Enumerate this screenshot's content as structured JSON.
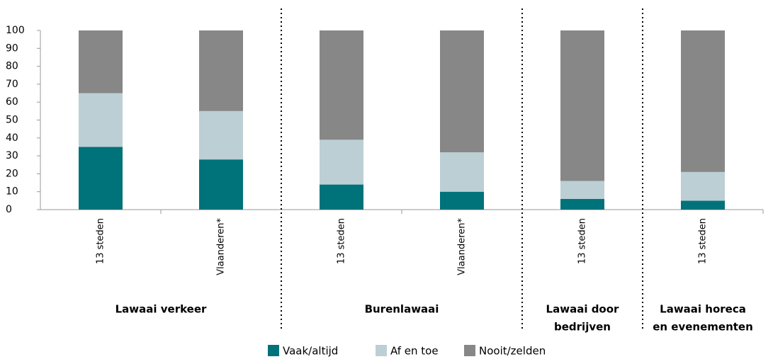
{
  "chart_data": {
    "type": "stacked-bar",
    "groups": [
      {
        "label": [
          "Lawaai verkeer"
        ],
        "categories": [
          "13 steden",
          "Vlaanderen*"
        ]
      },
      {
        "label": [
          "Burenlawaai"
        ],
        "categories": [
          "13 steden",
          "Vlaanderen*"
        ]
      },
      {
        "label": [
          "Lawaai door",
          "bedrijven"
        ],
        "categories": [
          "13 steden"
        ]
      },
      {
        "label": [
          "Lawaai horeca",
          "en evenementen"
        ],
        "categories": [
          "13 steden"
        ]
      }
    ],
    "series": [
      {
        "name": "Vaak/altijd",
        "color": "#00727a",
        "values": [
          35,
          28,
          14,
          10,
          6,
          5
        ]
      },
      {
        "name": "Af en toe",
        "color": "#bccfd4",
        "values": [
          30,
          27,
          25,
          22,
          10,
          16
        ]
      },
      {
        "name": "Nooit/zelden",
        "color": "#878787",
        "values": [
          35,
          45,
          61,
          68,
          84,
          79
        ]
      }
    ],
    "ylim": [
      0,
      100
    ],
    "yticks": [
      0,
      10,
      20,
      30,
      40,
      50,
      60,
      70,
      80,
      90,
      100
    ],
    "grid": false,
    "legend": "bottom"
  }
}
